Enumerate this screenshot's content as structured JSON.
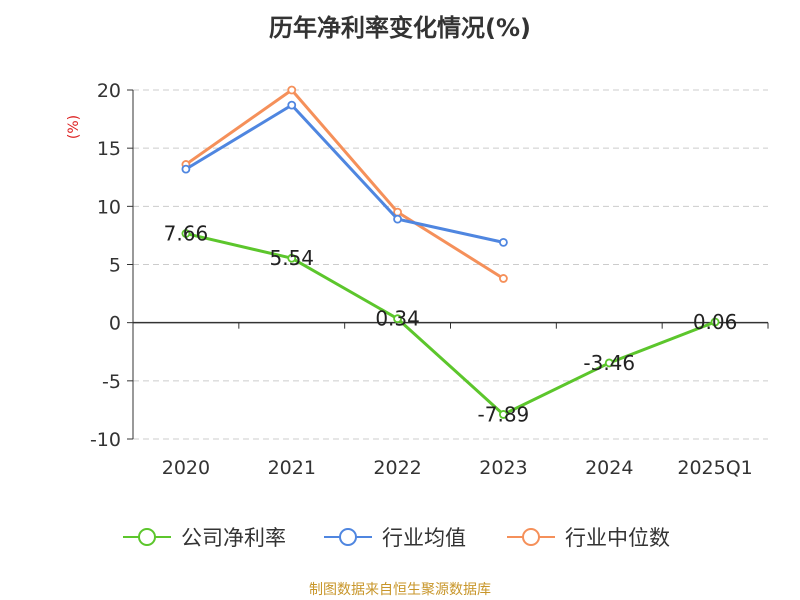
{
  "title": "历年净利率变化情况(%)",
  "source": "制图数据来自恒生聚源数据库",
  "chart_data": {
    "type": "line",
    "title": "历年净利率变化情况(%)",
    "ylabel": "(%)",
    "xlabel": "",
    "categories": [
      "2020",
      "2021",
      "2022",
      "2023",
      "2024",
      "2025Q1"
    ],
    "ylim": [
      -10,
      20
    ],
    "yticks": [
      20,
      15,
      10,
      5,
      0,
      -5,
      -10
    ],
    "ytick_labels": [
      "20",
      "15",
      "10",
      "5",
      "0",
      "-5",
      "-10"
    ],
    "grid": "horizontal dashed",
    "legend_position": "bottom",
    "series": [
      {
        "name": "公司净利率",
        "color": "#5cc62c",
        "values": [
          7.66,
          5.54,
          0.34,
          -7.89,
          -3.46,
          0.06
        ],
        "labels": [
          "7.66",
          "5.54",
          "0.34",
          "-7.89",
          "-3.46",
          "0.06"
        ]
      },
      {
        "name": "行业均值",
        "color": "#4f86e0",
        "values": [
          13.2,
          18.7,
          8.9,
          6.9,
          null,
          null
        ]
      },
      {
        "name": "行业中位数",
        "color": "#f5905a",
        "values": [
          13.6,
          20.0,
          9.5,
          3.8,
          null,
          null
        ]
      }
    ]
  }
}
